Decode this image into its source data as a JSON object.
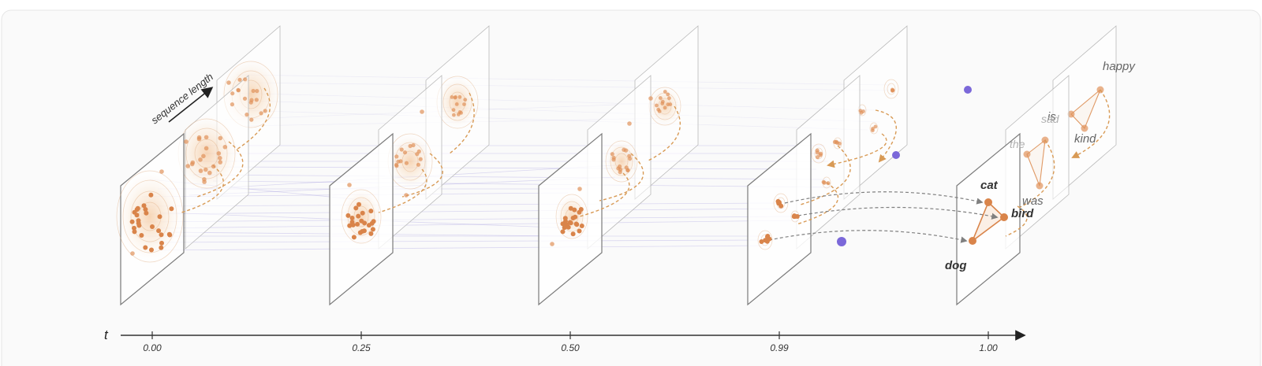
{
  "sequence_label": "sequence length",
  "axis": {
    "name": "t",
    "ticks": [
      "0.00",
      "0.25",
      "0.50",
      "0.99",
      "1.00"
    ]
  },
  "final_words": {
    "front": [
      "cat",
      "bird",
      "dog"
    ],
    "middle": [
      "is",
      "was",
      "sad",
      "the"
    ],
    "back": [
      "happy",
      "kind"
    ]
  },
  "colors": {
    "points": "#d9844a",
    "links": "#8a7fd6",
    "mask_tokens": "#7b68d9",
    "planes": "#7a7a7a"
  }
}
